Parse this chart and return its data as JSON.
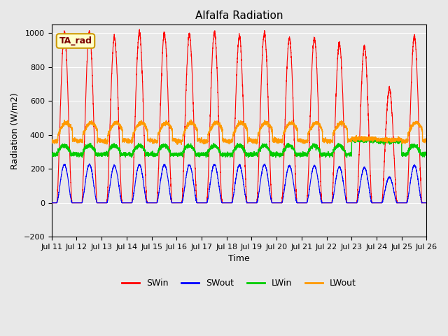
{
  "title": "Alfalfa Radiation",
  "xlabel": "Time",
  "ylabel": "Radiation (W/m2)",
  "ylim": [
    -200,
    1050
  ],
  "x_tick_labels": [
    "Jul 11",
    "Jul 12",
    "Jul 13",
    "Jul 14",
    "Jul 15",
    "Jul 16",
    "Jul 17",
    "Jul 18",
    "Jul 19",
    "Jul 20",
    "Jul 21",
    "Jul 22",
    "Jul 23",
    "Jul 24",
    "Jul 25",
    "Jul 26"
  ],
  "annotation_text": "TA_rad",
  "annotation_box_color": "#ffffcc",
  "annotation_border_color": "#cc9900",
  "plot_bg_color": "#e8e8e8",
  "fig_bg_color": "#e8e8e8",
  "line_colors": {
    "SWin": "#ff0000",
    "SWout": "#0000ff",
    "LWin": "#00cc00",
    "LWout": "#ff9900"
  },
  "grid_color": "#ffffff",
  "yticks": [
    -200,
    0,
    200,
    400,
    600,
    800,
    1000
  ],
  "peak_factors": [
    1.0,
    1.0,
    0.97,
    1.0,
    1.0,
    0.99,
    1.0,
    0.98,
    1.0,
    0.97,
    0.97,
    0.94,
    0.92,
    0.67,
    0.98,
    1.0
  ],
  "lwout_base": 415,
  "lwout_std": 45,
  "lwin_base": 305,
  "lwin_std": 22,
  "swout_ratio": 0.225,
  "n_per_day": 288,
  "sunrise_hour": 5.0,
  "sunset_hour": 19.5,
  "legend_fontsize": 9,
  "axis_fontsize": 8,
  "title_fontsize": 11
}
